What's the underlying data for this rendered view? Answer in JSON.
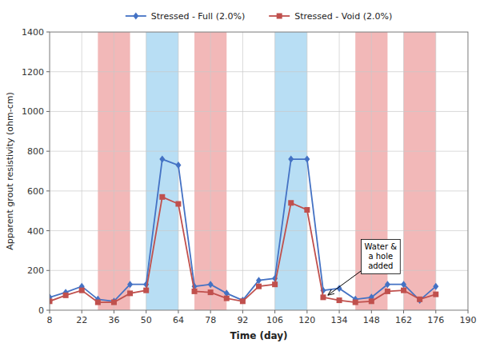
{
  "chart_data": {
    "type": "line",
    "x": [
      8,
      15,
      22,
      29,
      36,
      43,
      50,
      57,
      64,
      71,
      78,
      85,
      92,
      99,
      106,
      113,
      120,
      127,
      134,
      141,
      148,
      155,
      162,
      169,
      176
    ],
    "series": [
      {
        "name": "Stressed - Full (2.0%)",
        "color": "#4472C4",
        "marker": "diamond",
        "line_style": "solid",
        "values": [
          65,
          90,
          120,
          55,
          45,
          130,
          130,
          760,
          730,
          120,
          130,
          85,
          50,
          150,
          160,
          760,
          760,
          100,
          110,
          55,
          65,
          130,
          130,
          50,
          120
        ]
      },
      {
        "name": "Stressed - Void (2.0%)",
        "color": "#C0504D",
        "marker": "square",
        "line_style": "solid",
        "values": [
          45,
          75,
          100,
          40,
          40,
          85,
          100,
          570,
          535,
          95,
          90,
          60,
          45,
          120,
          130,
          540,
          505,
          65,
          50,
          40,
          45,
          95,
          100,
          55,
          80
        ]
      }
    ],
    "bands": [
      {
        "from": 29,
        "to": 43,
        "color": "#f2b8b8"
      },
      {
        "from": 71,
        "to": 85,
        "color": "#f2b8b8"
      },
      {
        "from": 141,
        "to": 155,
        "color": "#f2b8b8"
      },
      {
        "from": 162,
        "to": 176,
        "color": "#f2b8b8"
      },
      {
        "from": 50,
        "to": 64,
        "color": "#b8def4"
      },
      {
        "from": 106,
        "to": 120,
        "color": "#b8def4"
      }
    ],
    "xlim": [
      8,
      190
    ],
    "ylim": [
      0,
      1400
    ],
    "xticks": [
      8,
      22,
      36,
      50,
      64,
      78,
      92,
      106,
      120,
      134,
      148,
      162,
      176,
      190
    ],
    "yticks": [
      0,
      200,
      400,
      600,
      800,
      1000,
      1200,
      1400
    ],
    "xlabel": "Time (day)",
    "ylabel": "Apparent grout resistivity (ohm-cm)",
    "annotations": [
      {
        "text": "Water &\na hole\nadded",
        "x": 129,
        "y": 75,
        "text_x": 152,
        "text_y": 270
      }
    ],
    "grid": true,
    "legend": "top"
  }
}
